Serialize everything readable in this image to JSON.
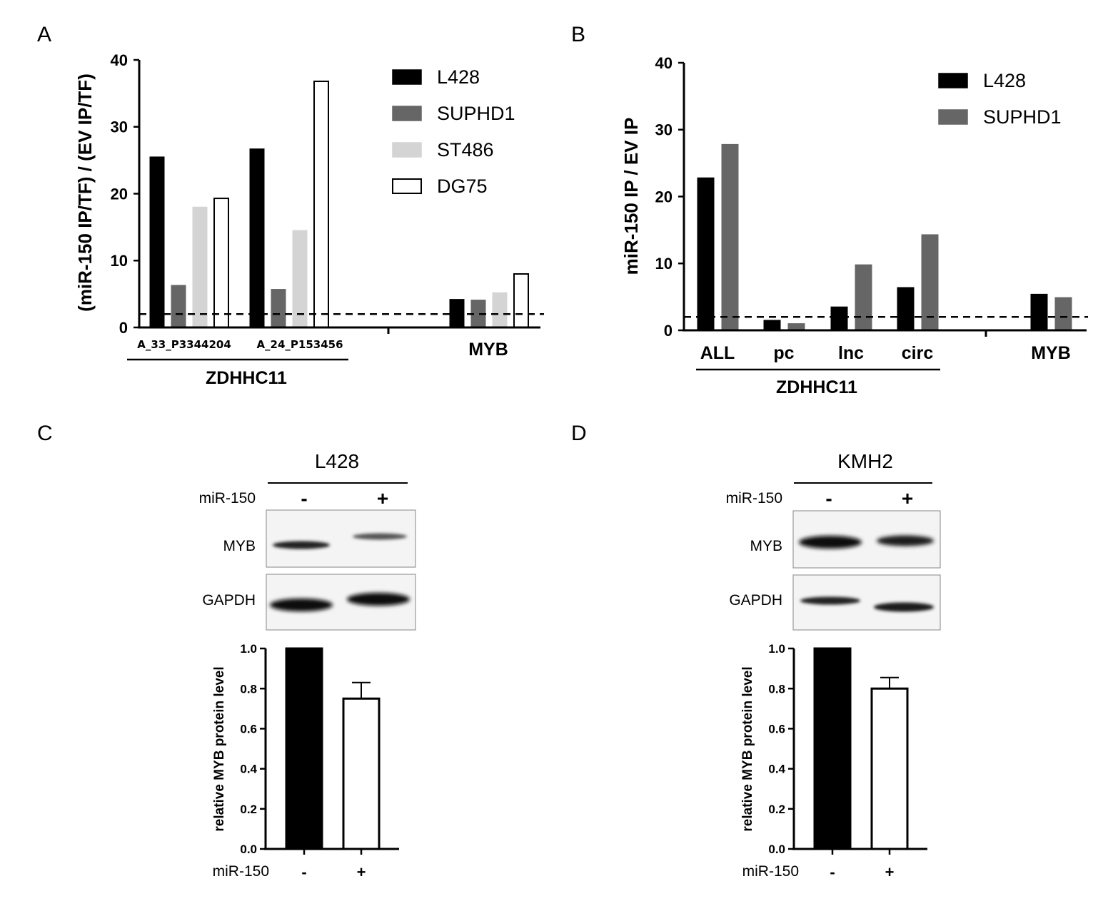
{
  "panels": {
    "a": "A",
    "b": "B",
    "c": "C",
    "d": "D"
  },
  "colors": {
    "L428": "#000000",
    "SUPHD1": "#666666",
    "ST486": "#d4d4d4",
    "DG75": "#ffffff"
  },
  "chart_data": [
    {
      "id": "A",
      "type": "bar",
      "ylabel": "(miR-150 IP/TF) / (EV IP/TF)",
      "ylim": [
        0,
        40
      ],
      "yticks": [
        0,
        10,
        20,
        30,
        40
      ],
      "categories": [
        "A_33_P3344204",
        "A_24_P153456",
        "MYB"
      ],
      "group_label": "ZDHHC11",
      "threshold": 2,
      "series": [
        {
          "name": "L428",
          "values": [
            25.5,
            26.7,
            4.2
          ]
        },
        {
          "name": "SUPHD1",
          "values": [
            6.3,
            5.7,
            4.1
          ]
        },
        {
          "name": "ST486",
          "values": [
            18.0,
            14.5,
            5.2
          ]
        },
        {
          "name": "DG75",
          "values": [
            19.3,
            36.8,
            8.0
          ]
        }
      ],
      "legend": [
        "L428",
        "SUPHD1",
        "ST486",
        "DG75"
      ]
    },
    {
      "id": "B",
      "type": "bar",
      "ylabel": "miR-150 IP / EV IP",
      "ylim": [
        0,
        40
      ],
      "yticks": [
        0,
        10,
        20,
        30,
        40
      ],
      "categories": [
        "ALL",
        "pc",
        "lnc",
        "circ",
        "MYB"
      ],
      "group_label": "ZDHHC11",
      "threshold": 2,
      "series": [
        {
          "name": "L428",
          "values": [
            22.8,
            1.5,
            3.5,
            6.4,
            5.4
          ]
        },
        {
          "name": "SUPHD1",
          "values": [
            27.8,
            1.0,
            9.8,
            14.3,
            4.9
          ]
        }
      ],
      "legend": [
        "L428",
        "SUPHD1"
      ]
    },
    {
      "id": "C",
      "type": "bar",
      "ylabel": "relative MYB protein level",
      "ylim": [
        0,
        1.0
      ],
      "yticks": [
        "0.0",
        "0.2",
        "0.4",
        "0.6",
        "0.8",
        "1.0"
      ],
      "xlabel": "miR-150",
      "categories": [
        "-",
        "+"
      ],
      "values": [
        1.0,
        0.75
      ],
      "errors": [
        0,
        0.08
      ]
    },
    {
      "id": "D",
      "type": "bar",
      "ylabel": "relative MYB protein level",
      "ylim": [
        0,
        1.0
      ],
      "yticks": [
        "0.0",
        "0.2",
        "0.4",
        "0.6",
        "0.8",
        "1.0"
      ],
      "xlabel": "miR-150",
      "categories": [
        "-",
        "+"
      ],
      "values": [
        1.0,
        0.8
      ],
      "errors": [
        0,
        0.055
      ]
    }
  ],
  "blots": {
    "c": {
      "title": "L428",
      "treatment": "miR-150",
      "minus": "-",
      "plus": "+",
      "row1": "MYB",
      "row2": "GAPDH"
    },
    "d": {
      "title": "KMH2",
      "treatment": "miR-150",
      "minus": "-",
      "plus": "+",
      "row1": "MYB",
      "row2": "GAPDH"
    }
  }
}
